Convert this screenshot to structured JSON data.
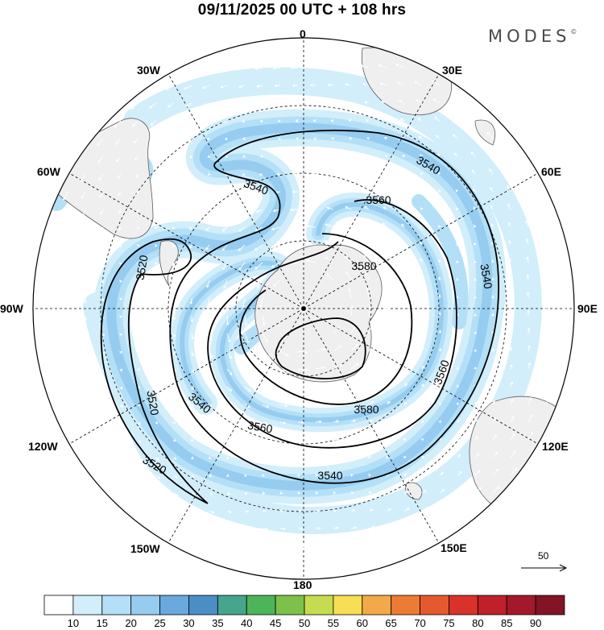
{
  "header": {
    "title": "09/11/2025  00 UTC  + 108 hrs",
    "brand": "MODES",
    "brand_mark": "©"
  },
  "map": {
    "projection": "south-polar-stereographic",
    "longitude_labels": [
      "0",
      "30E",
      "60E",
      "90E",
      "120E",
      "150E",
      "180",
      "150W",
      "120W",
      "90W",
      "60W",
      "30W"
    ],
    "contour_labels": [
      "3540",
      "3540",
      "3560",
      "3540",
      "3580",
      "3560",
      "3580",
      "3560",
      "3540",
      "3540",
      "3520",
      "3520",
      "3520"
    ],
    "contour_values": [
      3520,
      3540,
      3560,
      3580
    ],
    "wind_vector_reference": {
      "label": "50",
      "value": 50
    },
    "colors": {
      "land": "#efefef",
      "contour": "#000000",
      "vector": "#ffffff"
    }
  },
  "colorbar": {
    "ticks": [
      "10",
      "15",
      "20",
      "25",
      "30",
      "35",
      "40",
      "45",
      "50",
      "55",
      "60",
      "65",
      "70",
      "75",
      "80",
      "85",
      "90"
    ],
    "colors": [
      "#ffffff",
      "#d2eefb",
      "#b4e0f7",
      "#96ccf0",
      "#6aa9dd",
      "#4b8ec6",
      "#46a58c",
      "#4db45a",
      "#7ec14a",
      "#c5dc50",
      "#f7de55",
      "#f2aa48",
      "#ec7b33",
      "#e45a2e",
      "#d9322a",
      "#bf2029",
      "#a3192a",
      "#821424"
    ]
  }
}
